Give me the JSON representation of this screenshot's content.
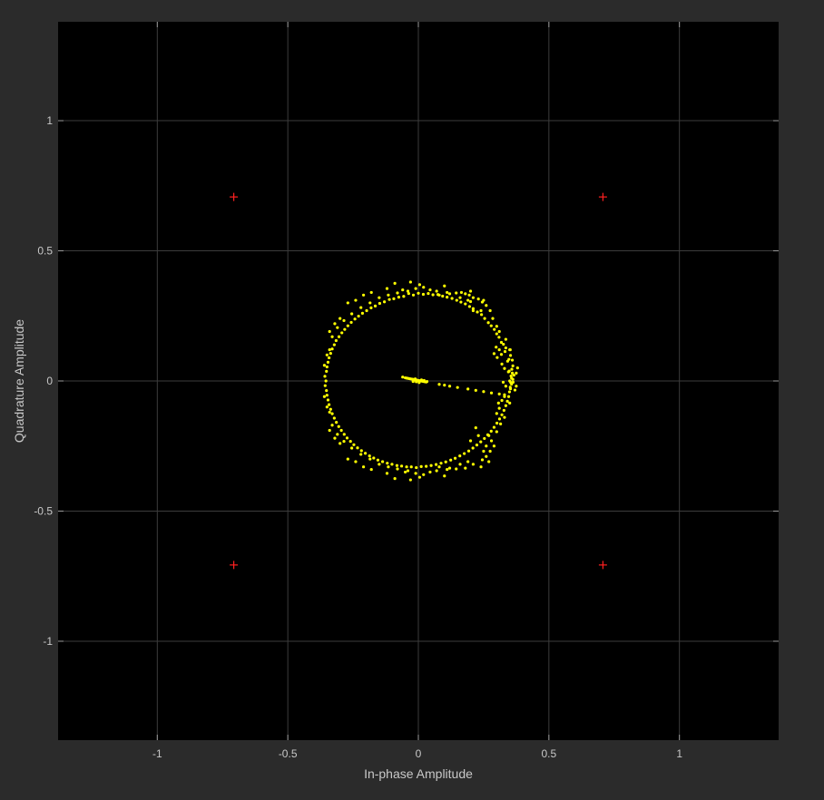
{
  "chart_data": {
    "type": "scatter",
    "xlabel": "In-phase Amplitude",
    "ylabel": "Quadrature Amplitude",
    "xlim": [
      -1.38,
      1.38
    ],
    "ylim": [
      -1.38,
      1.38
    ],
    "grid": true,
    "background_color": "#000000",
    "figure_color": "#2b2b2b",
    "grid_color": "#3c3c3c",
    "xticks": [
      -1,
      -0.5,
      0,
      0.5,
      1
    ],
    "yticks": [
      -1,
      -0.5,
      0,
      0.5,
      1
    ],
    "xtick_labels": [
      "-1",
      "-0.5",
      "0",
      "0.5",
      "1"
    ],
    "ytick_labels": [
      "-1",
      "-0.5",
      "0",
      "0.5",
      "1"
    ],
    "series": [
      {
        "marker": "dot",
        "color": "#ffff00",
        "points": [
          [
            0.35,
            0.0
          ],
          [
            0.348,
            0.038
          ],
          [
            0.342,
            0.076
          ],
          [
            0.332,
            0.113
          ],
          [
            0.318,
            0.148
          ],
          [
            0.3,
            0.181
          ],
          [
            0.279,
            0.212
          ],
          [
            0.254,
            0.24
          ],
          [
            0.226,
            0.265
          ],
          [
            0.196,
            0.286
          ],
          [
            0.163,
            0.303
          ],
          [
            0.129,
            0.317
          ],
          [
            0.093,
            0.326
          ],
          [
            0.056,
            0.331
          ],
          [
            0.019,
            0.333
          ],
          [
            -0.019,
            0.33
          ],
          [
            -0.056,
            0.325
          ],
          [
            -0.094,
            0.316
          ],
          [
            -0.13,
            0.304
          ],
          [
            -0.165,
            0.288
          ],
          [
            -0.198,
            0.27
          ],
          [
            -0.229,
            0.249
          ],
          [
            -0.257,
            0.225
          ],
          [
            -0.282,
            0.198
          ],
          [
            -0.304,
            0.17
          ],
          [
            -0.322,
            0.139
          ],
          [
            -0.336,
            0.106
          ],
          [
            -0.346,
            0.072
          ],
          [
            -0.352,
            0.037
          ],
          [
            -0.354,
            0.0
          ],
          [
            -0.352,
            -0.037
          ],
          [
            -0.346,
            -0.073
          ],
          [
            -0.336,
            -0.109
          ],
          [
            -0.322,
            -0.143
          ],
          [
            -0.305,
            -0.175
          ],
          [
            -0.284,
            -0.205
          ],
          [
            -0.26,
            -0.232
          ],
          [
            -0.233,
            -0.257
          ],
          [
            -0.203,
            -0.278
          ],
          [
            -0.171,
            -0.296
          ],
          [
            -0.137,
            -0.31
          ],
          [
            -0.101,
            -0.32
          ],
          [
            -0.064,
            -0.327
          ],
          [
            -0.027,
            -0.33
          ],
          [
            0.011,
            -0.329
          ],
          [
            0.049,
            -0.325
          ],
          [
            0.087,
            -0.316
          ],
          [
            0.124,
            -0.304
          ],
          [
            0.159,
            -0.288
          ],
          [
            0.193,
            -0.269
          ],
          [
            0.224,
            -0.246
          ],
          [
            0.253,
            -0.221
          ],
          [
            0.279,
            -0.193
          ],
          [
            0.301,
            -0.162
          ],
          [
            0.32,
            -0.13
          ],
          [
            0.335,
            -0.095
          ],
          [
            0.346,
            -0.06
          ],
          [
            0.352,
            -0.024
          ],
          [
            0.355,
            0.019
          ],
          [
            0.362,
            0.006
          ],
          [
            0.357,
            -0.012
          ],
          [
            0.36,
            0.03
          ],
          [
            0.353,
            -0.03
          ],
          [
            0.363,
            -0.005
          ],
          [
            0.358,
            0.045
          ],
          [
            0.366,
            0.022
          ],
          [
            0.357,
            0.011
          ],
          [
            0.362,
            0.058
          ],
          [
            0.347,
            0.083
          ],
          [
            0.353,
            0.098
          ],
          [
            0.335,
            0.127
          ],
          [
            0.326,
            0.141
          ],
          [
            0.309,
            0.168
          ],
          [
            0.291,
            0.198
          ],
          [
            0.268,
            0.224
          ],
          [
            0.242,
            0.255
          ],
          [
            0.21,
            0.278
          ],
          [
            0.18,
            0.296
          ],
          [
            0.147,
            0.31
          ],
          [
            0.11,
            0.322
          ],
          [
            0.075,
            0.332
          ],
          [
            0.038,
            0.336
          ],
          [
            0.0,
            0.337
          ],
          [
            -0.037,
            0.336
          ],
          [
            -0.075,
            0.322
          ],
          [
            -0.111,
            0.313
          ],
          [
            -0.148,
            0.298
          ],
          [
            -0.181,
            0.281
          ],
          [
            -0.214,
            0.26
          ],
          [
            -0.243,
            0.238
          ],
          [
            -0.27,
            0.212
          ],
          [
            -0.293,
            0.185
          ],
          [
            -0.315,
            0.155
          ],
          [
            -0.33,
            0.123
          ],
          [
            -0.342,
            0.089
          ],
          [
            -0.35,
            0.054
          ],
          [
            -0.358,
            0.018
          ],
          [
            -0.357,
            -0.018
          ],
          [
            -0.35,
            -0.055
          ],
          [
            -0.342,
            -0.091
          ],
          [
            -0.33,
            -0.126
          ],
          [
            -0.314,
            -0.159
          ],
          [
            -0.295,
            -0.19
          ],
          [
            -0.273,
            -0.219
          ],
          [
            -0.247,
            -0.245
          ],
          [
            -0.218,
            -0.268
          ],
          [
            -0.187,
            -0.288
          ],
          [
            -0.155,
            -0.304
          ],
          [
            -0.119,
            -0.316
          ],
          [
            -0.082,
            -0.325
          ],
          [
            -0.045,
            -0.33
          ],
          [
            -0.008,
            -0.333
          ],
          [
            0.03,
            -0.328
          ],
          [
            0.068,
            -0.321
          ],
          [
            0.105,
            -0.311
          ],
          [
            0.141,
            -0.297
          ],
          [
            0.176,
            -0.279
          ],
          [
            0.209,
            -0.258
          ],
          [
            0.239,
            -0.234
          ],
          [
            0.266,
            -0.207
          ],
          [
            0.29,
            -0.178
          ],
          [
            0.311,
            -0.146
          ],
          [
            0.328,
            -0.113
          ],
          [
            0.341,
            -0.078
          ],
          [
            0.349,
            -0.042
          ],
          [
            0.354,
            -0.006
          ],
          [
            0.32,
            0.065
          ],
          [
            0.33,
            0.048
          ],
          [
            0.345,
            0.035
          ],
          [
            0.335,
            -0.02
          ],
          [
            0.325,
            -0.005
          ],
          [
            0.31,
            0.12
          ],
          [
            0.298,
            0.13
          ],
          [
            0.302,
            0.09
          ],
          [
            0.318,
            0.102
          ],
          [
            0.29,
            0.105
          ],
          [
            0.32,
            -0.075
          ],
          [
            0.31,
            -0.105
          ],
          [
            0.3,
            -0.125
          ],
          [
            0.33,
            -0.06
          ],
          [
            0.307,
            -0.085
          ],
          [
            0.26,
            0.29
          ],
          [
            0.275,
            0.27
          ],
          [
            0.245,
            0.303
          ],
          [
            0.21,
            0.32
          ],
          [
            0.18,
            0.335
          ],
          [
            0.145,
            0.338
          ],
          [
            0.11,
            0.34
          ],
          [
            0.07,
            0.345
          ],
          [
            0.045,
            0.35
          ],
          [
            -0.01,
            0.355
          ],
          [
            -0.04,
            0.345
          ],
          [
            -0.08,
            0.338
          ],
          [
            -0.115,
            0.33
          ],
          [
            -0.15,
            0.32
          ],
          [
            -0.185,
            0.3
          ],
          [
            -0.22,
            0.282
          ],
          [
            -0.255,
            0.258
          ],
          [
            -0.285,
            0.232
          ],
          [
            -0.31,
            0.205
          ],
          [
            -0.33,
            0.17
          ],
          [
            0.26,
            -0.29
          ],
          [
            0.275,
            -0.27
          ],
          [
            0.245,
            -0.303
          ],
          [
            0.21,
            -0.32
          ],
          [
            0.18,
            -0.335
          ],
          [
            0.145,
            -0.338
          ],
          [
            0.11,
            -0.34
          ],
          [
            0.07,
            -0.345
          ],
          [
            0.045,
            -0.35
          ],
          [
            -0.01,
            -0.355
          ],
          [
            -0.04,
            -0.345
          ],
          [
            -0.08,
            -0.338
          ],
          [
            -0.115,
            -0.33
          ],
          [
            -0.15,
            -0.32
          ],
          [
            -0.185,
            -0.3
          ],
          [
            -0.22,
            -0.282
          ],
          [
            -0.255,
            -0.258
          ],
          [
            -0.285,
            -0.232
          ],
          [
            -0.31,
            -0.205
          ],
          [
            -0.33,
            -0.17
          ],
          [
            -0.09,
            0.375
          ],
          [
            -0.03,
            0.38
          ],
          [
            0.005,
            0.37
          ],
          [
            0.1,
            0.365
          ],
          [
            -0.12,
            0.355
          ],
          [
            0.2,
            0.345
          ],
          [
            0.23,
            0.315
          ],
          [
            0.25,
            0.31
          ],
          [
            0.195,
            0.33
          ],
          [
            0.165,
            0.34
          ],
          [
            0.2,
            0.305
          ],
          [
            0.21,
            0.27
          ],
          [
            0.24,
            0.27
          ],
          [
            0.285,
            0.24
          ],
          [
            0.3,
            0.21
          ],
          [
            0.31,
            0.19
          ],
          [
            0.335,
            0.16
          ],
          [
            0.35,
            0.12
          ],
          [
            0.352,
            0.12
          ],
          [
            0.36,
            0.08
          ],
          [
            0.375,
            0.03
          ],
          [
            0.38,
            0.05
          ],
          [
            0.37,
            -0.035
          ],
          [
            0.375,
            -0.02
          ],
          [
            0.35,
            -0.085
          ],
          [
            -0.09,
            -0.375
          ],
          [
            -0.03,
            -0.38
          ],
          [
            0.005,
            -0.37
          ],
          [
            0.1,
            -0.365
          ],
          [
            -0.12,
            -0.355
          ],
          [
            0.2,
            -0.23
          ],
          [
            0.23,
            -0.21
          ],
          [
            0.22,
            -0.18
          ],
          [
            0.26,
            -0.25
          ],
          [
            0.28,
            -0.23
          ],
          [
            0.3,
            -0.195
          ],
          [
            0.29,
            -0.25
          ],
          [
            0.27,
            -0.21
          ],
          [
            0.315,
            -0.165
          ],
          [
            0.33,
            -0.14
          ],
          [
            0.25,
            -0.27
          ],
          [
            0.27,
            -0.31
          ],
          [
            0.24,
            -0.33
          ],
          [
            -0.24,
            -0.31
          ],
          [
            -0.21,
            -0.33
          ],
          [
            -0.18,
            -0.34
          ],
          [
            -0.27,
            -0.3
          ],
          [
            -0.3,
            -0.24
          ],
          [
            -0.32,
            -0.22
          ],
          [
            -0.34,
            -0.19
          ],
          [
            -0.34,
            -0.12
          ],
          [
            -0.35,
            -0.1
          ],
          [
            -0.36,
            -0.06
          ],
          [
            -0.36,
            0.06
          ],
          [
            -0.35,
            0.1
          ],
          [
            -0.34,
            0.12
          ],
          [
            -0.34,
            0.19
          ],
          [
            -0.32,
            0.22
          ],
          [
            -0.3,
            0.24
          ],
          [
            -0.27,
            0.3
          ],
          [
            -0.24,
            0.31
          ],
          [
            -0.21,
            0.33
          ],
          [
            -0.18,
            0.34
          ],
          [
            0.08,
            -0.33
          ],
          [
            0.12,
            -0.335
          ],
          [
            0.16,
            -0.32
          ],
          [
            0.19,
            -0.31
          ],
          [
            -0.05,
            -0.35
          ],
          [
            0.02,
            -0.36
          ],
          [
            -0.06,
            0.35
          ],
          [
            0.02,
            0.36
          ],
          [
            0.08,
            0.33
          ],
          [
            0.12,
            0.335
          ],
          [
            0.16,
            0.32
          ],
          [
            0.19,
            0.31
          ],
          [
            -0.06,
            0.015
          ],
          [
            -0.05,
            0.012
          ],
          [
            -0.04,
            0.01
          ],
          [
            -0.03,
            0.008
          ],
          [
            -0.02,
            0.006
          ],
          [
            -0.01,
            0.004
          ],
          [
            0.0,
            0.002
          ],
          [
            0.01,
            0.0
          ],
          [
            0.02,
            -0.002
          ],
          [
            0.03,
            -0.004
          ],
          [
            -0.045,
            0.011
          ],
          [
            -0.035,
            0.009
          ],
          [
            -0.025,
            0.007
          ],
          [
            -0.015,
            0.005
          ],
          [
            -0.005,
            0.003
          ],
          [
            0.005,
            0.001
          ],
          [
            0.015,
            -0.001
          ],
          [
            0.025,
            -0.003
          ],
          [
            -0.008,
            -0.003
          ],
          [
            0.003,
            -0.006
          ],
          [
            -0.02,
            -0.002
          ],
          [
            0.012,
            0.004
          ],
          [
            0.022,
            0.002
          ],
          [
            -0.012,
            0.008
          ],
          [
            0.033,
            -0.002
          ],
          [
            0.08,
            -0.013
          ],
          [
            0.1,
            -0.016
          ],
          [
            0.12,
            -0.02
          ],
          [
            0.15,
            -0.025
          ],
          [
            0.19,
            -0.031
          ],
          [
            0.22,
            -0.036
          ],
          [
            0.25,
            -0.041
          ],
          [
            0.28,
            -0.046
          ],
          [
            0.31,
            -0.05
          ],
          [
            0.33,
            -0.053
          ]
        ]
      },
      {
        "marker": "plus",
        "color": "#ff2020",
        "points": [
          [
            -0.707,
            0.707
          ],
          [
            0.707,
            0.707
          ],
          [
            -0.707,
            -0.707
          ],
          [
            0.707,
            -0.707
          ]
        ]
      }
    ]
  }
}
